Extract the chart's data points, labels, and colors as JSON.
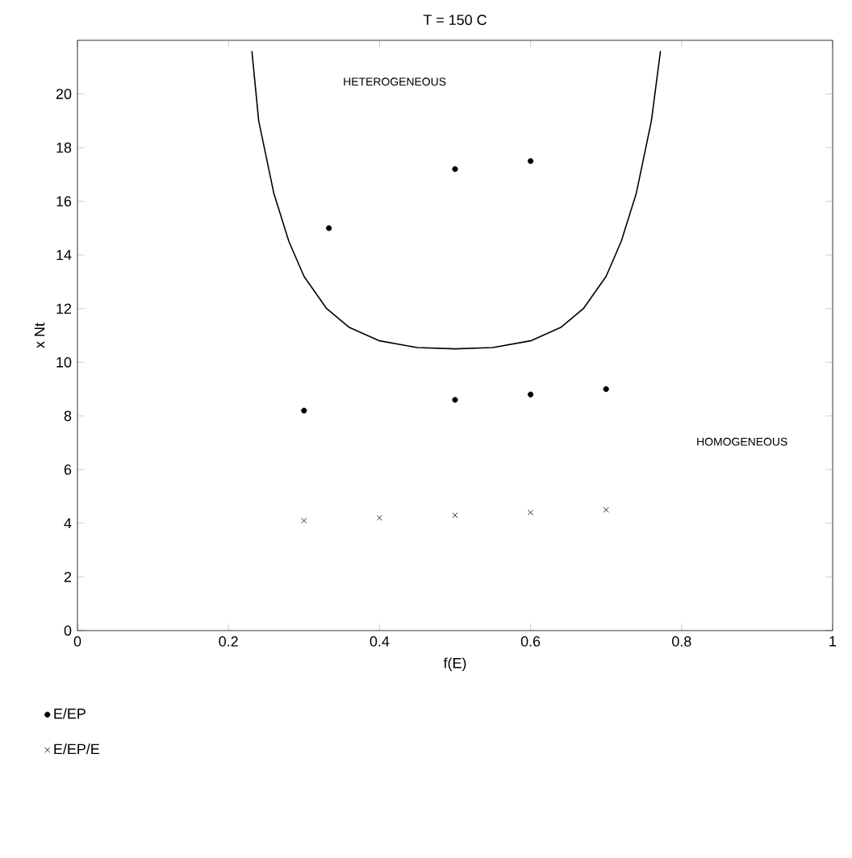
{
  "chart_data": {
    "type": "scatter",
    "title": "T = 150 C",
    "xlabel": "f(E)",
    "ylabel": "x Nt",
    "xlim": [
      0,
      1
    ],
    "ylim": [
      0,
      22
    ],
    "xticks": [
      0,
      0.2,
      0.4,
      0.6,
      0.8,
      1
    ],
    "yticks": [
      0,
      2,
      4,
      6,
      8,
      10,
      12,
      14,
      16,
      18,
      20
    ],
    "grid": false,
    "legend": "bottom",
    "annotations": [
      "HETEROGENEOUS",
      "HOMOGENEOUS"
    ],
    "series": [
      {
        "name": "E/EP",
        "color": "#000000",
        "marker": "circle",
        "x": [
          0.3,
          0.333,
          0.5,
          0.6,
          0.5,
          0.6,
          0.7
        ],
        "values": [
          8.2,
          15.0,
          17.2,
          17.5,
          8.6,
          8.8,
          9.0
        ]
      },
      {
        "name": "E/EP/E",
        "color": "#000000",
        "marker": "cross",
        "x": [
          0.3,
          0.4,
          0.5,
          0.6,
          0.7
        ],
        "values": [
          4.1,
          4.2,
          4.3,
          4.4,
          4.5
        ]
      },
      {
        "type": "line",
        "color": "#000000",
        "marker": "none",
        "x": [
          0.231,
          0.24,
          0.26,
          0.28,
          0.3,
          0.33,
          0.36,
          0.4,
          0.45,
          0.5,
          0.55,
          0.6,
          0.64,
          0.67,
          0.7,
          0.72,
          0.74,
          0.76,
          0.772
        ],
        "values": [
          21.6,
          19,
          16.3,
          14.5,
          13.2,
          12.0,
          11.3,
          10.8,
          10.55,
          10.5,
          10.55,
          10.8,
          11.3,
          12.0,
          13.2,
          14.5,
          16.3,
          19,
          21.6
        ]
      }
    ]
  }
}
